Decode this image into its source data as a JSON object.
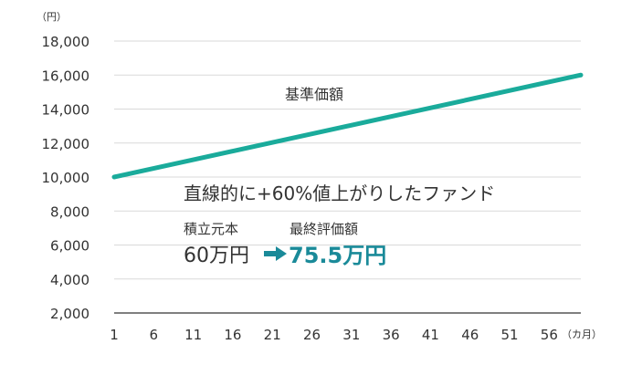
{
  "chart_data": {
    "type": "line",
    "y_unit": "（円）",
    "x_unit": "（カ月）",
    "ylim": [
      2000,
      18000
    ],
    "yticks": [
      2000,
      4000,
      6000,
      8000,
      10000,
      12000,
      14000,
      16000,
      18000
    ],
    "ytick_labels": [
      "2,000",
      "4,000",
      "6,000",
      "8,000",
      "10,000",
      "12,000",
      "14,000",
      "16,000",
      "18,000"
    ],
    "xlim": [
      1,
      60
    ],
    "xticks": [
      1,
      6,
      11,
      16,
      21,
      26,
      31,
      36,
      41,
      46,
      51,
      56
    ],
    "xtick_labels": [
      "1",
      "6",
      "11",
      "16",
      "21",
      "26",
      "31",
      "36",
      "41",
      "46",
      "51",
      "56"
    ],
    "grid": true,
    "series": [
      {
        "name": "基準価額",
        "x": [
          1,
          60
        ],
        "y": [
          10000,
          16000
        ],
        "color": "#1aab9b"
      }
    ],
    "annotations": {
      "headline": "直線的に+60%値上がりしたファンド",
      "principal_label": "積立元本",
      "principal_value": "60万円",
      "final_label": "最終評価額",
      "final_value": "75.5万円",
      "accent_color": "#1a8a99"
    }
  }
}
